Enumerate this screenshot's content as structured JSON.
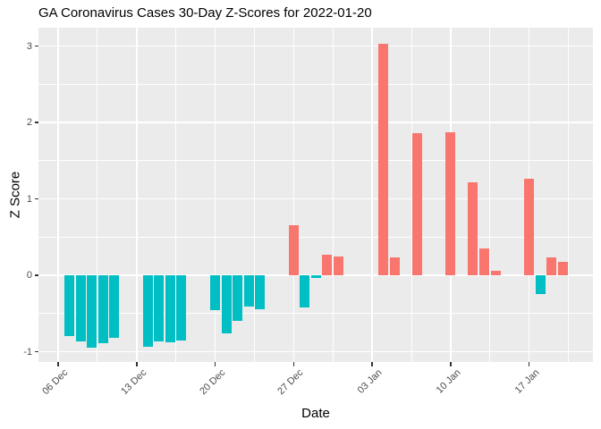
{
  "figure": {
    "title": "GA Coronavirus Cases 30-Day Z-Scores for 2022-01-20"
  },
  "chart_data": {
    "type": "bar",
    "title": "GA Coronavirus Cases 30-Day Z-Scores for 2022-01-20",
    "xlabel": "Date",
    "ylabel": "Z Score",
    "x_start_date": "2021-12-06",
    "ylim": [
      -1.14,
      3.24
    ],
    "grid": true,
    "legend": "none",
    "panel_background": "#EBEBEB",
    "gridline_color": "#FFFFFF",
    "positive_color": "#F8766D",
    "negative_color": "#00BFC4",
    "tick_color": "#333333",
    "axis_text_color": "#4D4D4D",
    "x_ticks": [
      {
        "day": 0,
        "label": "06 Dec"
      },
      {
        "day": 7,
        "label": "13 Dec"
      },
      {
        "day": 14,
        "label": "20 Dec"
      },
      {
        "day": 21,
        "label": "27 Dec"
      },
      {
        "day": 28,
        "label": "03 Jan"
      },
      {
        "day": 35,
        "label": "10 Jan"
      },
      {
        "day": 42,
        "label": "17 Jan"
      }
    ],
    "x_minor_days": [
      3.5,
      10.5,
      17.5,
      24.5,
      31.5,
      38.5,
      45.5
    ],
    "y_ticks": [
      {
        "value": -1,
        "label": "-1"
      },
      {
        "value": 0,
        "label": "0"
      },
      {
        "value": 1,
        "label": "1"
      },
      {
        "value": 2,
        "label": "2"
      },
      {
        "value": 3,
        "label": "3"
      }
    ],
    "y_minor": [
      -0.5,
      0.5,
      1.5,
      2.5
    ],
    "points": [
      {
        "date": "2021-12-07",
        "day": 1,
        "value": -0.8
      },
      {
        "date": "2021-12-08",
        "day": 2,
        "value": -0.87
      },
      {
        "date": "2021-12-09",
        "day": 3,
        "value": -0.95
      },
      {
        "date": "2021-12-10",
        "day": 4,
        "value": -0.89
      },
      {
        "date": "2021-12-11",
        "day": 5,
        "value": -0.82
      },
      {
        "date": "2021-12-14",
        "day": 8,
        "value": -0.94
      },
      {
        "date": "2021-12-15",
        "day": 9,
        "value": -0.86
      },
      {
        "date": "2021-12-16",
        "day": 10,
        "value": -0.88
      },
      {
        "date": "2021-12-17",
        "day": 11,
        "value": -0.85
      },
      {
        "date": "2021-12-20",
        "day": 14,
        "value": -0.46
      },
      {
        "date": "2021-12-21",
        "day": 15,
        "value": -0.76
      },
      {
        "date": "2021-12-22",
        "day": 16,
        "value": -0.6
      },
      {
        "date": "2021-12-23",
        "day": 17,
        "value": -0.41
      },
      {
        "date": "2021-12-24",
        "day": 18,
        "value": -0.44
      },
      {
        "date": "2021-12-27",
        "day": 21,
        "value": 0.65
      },
      {
        "date": "2021-12-28",
        "day": 22,
        "value": -0.42
      },
      {
        "date": "2021-12-29",
        "day": 23,
        "value": -0.03
      },
      {
        "date": "2021-12-30",
        "day": 24,
        "value": 0.27
      },
      {
        "date": "2021-12-31",
        "day": 25,
        "value": 0.25
      },
      {
        "date": "2022-01-04",
        "day": 29,
        "value": 3.03
      },
      {
        "date": "2022-01-05",
        "day": 30,
        "value": 0.23
      },
      {
        "date": "2022-01-07",
        "day": 32,
        "value": 1.86
      },
      {
        "date": "2022-01-10",
        "day": 35,
        "value": 1.87
      },
      {
        "date": "2022-01-12",
        "day": 37,
        "value": 1.22
      },
      {
        "date": "2022-01-13",
        "day": 38,
        "value": 0.35
      },
      {
        "date": "2022-01-14",
        "day": 39,
        "value": 0.06
      },
      {
        "date": "2022-01-17",
        "day": 42,
        "value": 1.26
      },
      {
        "date": "2022-01-18",
        "day": 43,
        "value": -0.25
      },
      {
        "date": "2022-01-19",
        "day": 44,
        "value": 0.23
      },
      {
        "date": "2022-01-20",
        "day": 45,
        "value": 0.18
      }
    ]
  }
}
